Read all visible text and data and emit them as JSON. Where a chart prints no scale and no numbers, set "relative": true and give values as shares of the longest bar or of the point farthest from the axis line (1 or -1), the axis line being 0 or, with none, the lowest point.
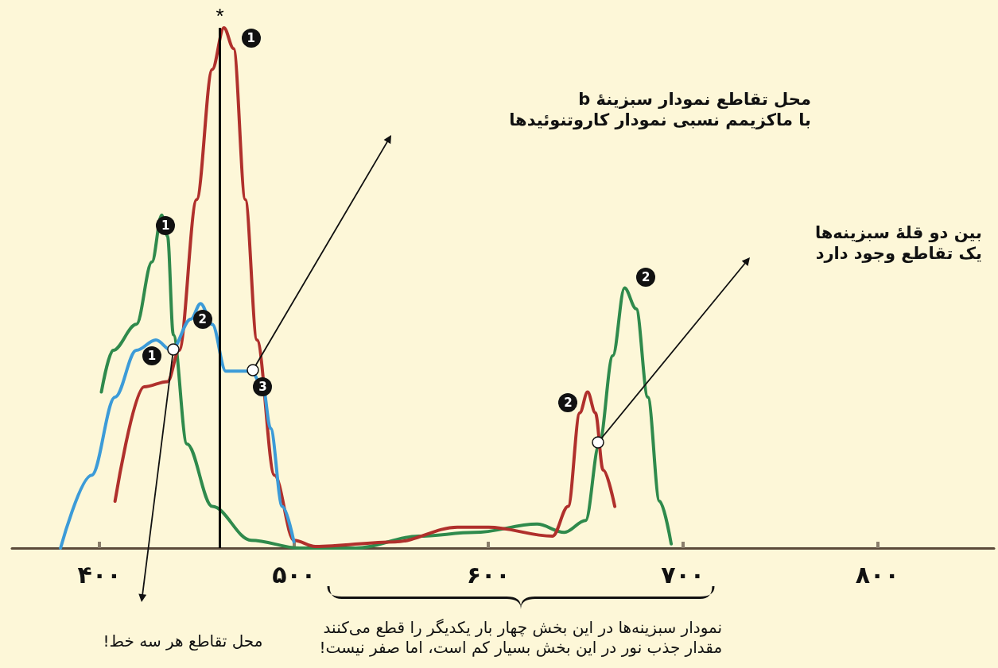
{
  "chart_data": {
    "type": "line",
    "relative": true,
    "grid": false,
    "marker": "none",
    "line_style": "solid",
    "xlim": [
      355,
      860
    ],
    "xticks": [
      {
        "value": 400,
        "label": "۴۰۰"
      },
      {
        "value": 500,
        "label": "۵۰۰"
      },
      {
        "value": 600,
        "label": "۶۰۰"
      },
      {
        "value": 700,
        "label": "۷۰۰"
      },
      {
        "value": 800,
        "label": "۸۰۰"
      }
    ],
    "series": [
      {
        "color": "#2f8a4c",
        "x": [
          401,
          407,
          419,
          427,
          432,
          435,
          438,
          445,
          458,
          478,
          503,
          532,
          564,
          593,
          625,
          639,
          650,
          657,
          664,
          670,
          676,
          682,
          688,
          694
        ],
        "values": [
          0.3,
          0.38,
          0.43,
          0.55,
          0.64,
          0.6,
          0.41,
          0.2,
          0.08,
          0.015,
          0,
          0,
          0.023,
          0.03,
          0.046,
          0.03,
          0.053,
          0.2,
          0.37,
          0.5,
          0.46,
          0.29,
          0.09,
          0.008
        ]
      },
      {
        "color": "#b0302c",
        "x": [
          408,
          423,
          435,
          441,
          450,
          458,
          464,
          469,
          475,
          481,
          490,
          500,
          511,
          552,
          584,
          600,
          633,
          641,
          647,
          651,
          655,
          659,
          665
        ],
        "values": [
          0.09,
          0.31,
          0.32,
          0.38,
          0.67,
          0.92,
          1.0,
          0.96,
          0.67,
          0.4,
          0.14,
          0.015,
          0.003,
          0.012,
          0.04,
          0.04,
          0.023,
          0.08,
          0.26,
          0.3,
          0.26,
          0.15,
          0.08
        ]
      },
      {
        "color": "#3c9bd8",
        "x": [
          380,
          396,
          408,
          419,
          429,
          437,
          447,
          452,
          458,
          465,
          471,
          478,
          484,
          488,
          494,
          500
        ],
        "values": [
          0,
          0.14,
          0.29,
          0.38,
          0.4,
          0.38,
          0.44,
          0.47,
          0.43,
          0.34,
          0.34,
          0.34,
          0.31,
          0.23,
          0.08,
          0.012
        ]
      }
    ],
    "ref_lines": [
      {
        "axis": "x",
        "value": 462,
        "label": "*",
        "color": "#000000"
      }
    ],
    "annotations": [
      "محل تقاطع نمودار سبزینهٔ b\nبا ماکزیمم نسبی نمودار کاروتنوئیدها",
      "بین دو قلهٔ سبزینه‌ها\nیک تقاطع وجود دارد",
      "محل تقاطع هر سه خط!",
      "نمودار سبزینه‌ها در این بخش چهار بار یکدیگر را قطع می‌کنند\nمقدار جذب نور در این بخش بسیار کم است، اما صفر نیست!",
      {
        "text": "1",
        "x": 478,
        "y": 0.98
      },
      {
        "text": "1",
        "x": 434,
        "y": 0.62
      },
      {
        "text": "1",
        "x": 427,
        "y": 0.37
      },
      {
        "text": "2",
        "x": 453,
        "y": 0.44
      },
      {
        "text": "3",
        "x": 484,
        "y": 0.31
      },
      {
        "text": "2",
        "x": 641,
        "y": 0.28
      },
      {
        "text": "2",
        "x": 681,
        "y": 0.52
      }
    ]
  }
}
